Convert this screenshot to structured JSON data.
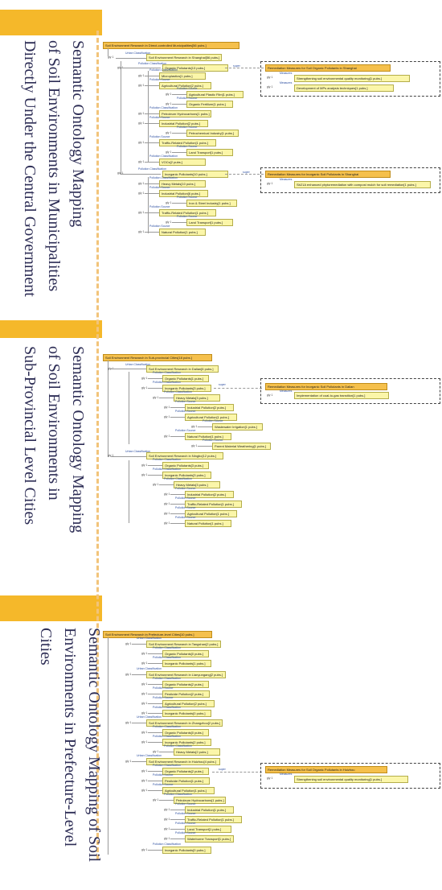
{
  "section1": {
    "title_lines": [
      "Semantic Ontology Mapping",
      "of Soil Environments in Municipalities",
      "Directly Under the Central Government"
    ],
    "root": "Soil Environment Research in Direct-controlled Municipalities[56 pubs.]",
    "urban_rel": "Urban Classification",
    "gly": "gly 1",
    "city": "Soil Environment Research in Shanghai[56 pubs.]",
    "poll_rel": "Pollution Classification",
    "source_rel": "Pollution Source",
    "super": "super",
    "organic": "Organic Pollutants[13 pubs.]",
    "org_sources": [
      "Microplastics[1 pubs.]",
      "Agricultural Pollution[2 pubs.]",
      "Agricultural Plastic Film[1 pubs.]",
      "Organic Fertilizer[1 pubs.]",
      "Petroleum Hydrocarbons[1 pubs.]",
      "Industrial Pollution[2 pubs.]",
      "Petrochemical Industry[1 pubs.]",
      "Traffic-Related Pollution[1 pubs.]",
      "Land Transport[1 pubs.]",
      "VOCs[2 pubs.]"
    ],
    "inorganic": "Inorganic Pollutants[10 pubs.]",
    "inorg_sources": [
      "Heavy Metals[10 pubs.]",
      "Industrial Pollution[6 pubs.]",
      "Iron & Steel Industry[1 pubs.]",
      "Traffic-Related Pollution[1 pubs.]",
      "Land Transport[1 pubs.]",
      "Natural Pollution[1 pubs.]"
    ],
    "rem1_head": "Remediation Measures for Soil Organic Pollutants in Shanghai",
    "rem1_rel": "Measures",
    "rem1_items": [
      "Strengthening soil environmental quality monitoring[1 pubs.]",
      "Development of MPs analysis techniques[1 pubs.]"
    ],
    "rem2_head": "Remediation Measures for Inorganic Soil Pollutants in Shanghai",
    "rem2_items": [
      "Sb21A enhanced phytoremediation with compost mulch for soil remediation[1 pubs.]"
    ]
  },
  "section2": {
    "title_lines": [
      "Semantic Ontology Mapping",
      "of Soil Environments in",
      "Sub-Provincial Level Cities"
    ],
    "root": "Soil Environment Research in Sub-provincial Cities[18 pubs.]",
    "city1": "Soil Environment Research in Dalian[6 pubs.]",
    "city1_items": [
      "Organic Pollutants[1 pubs.]",
      "Inorganic Pollutants[3 pubs.]",
      "Heavy Metals[3 pubs.]",
      "Industrial Pollution[2 pubs.]",
      "Agricultural Pollution[1 pubs.]",
      "Wastewater Irrigation[1 pubs.]",
      "Natural Pollution[1 pubs.]",
      "Parent Material Weathering[1 pubs.]"
    ],
    "city2": "Soil Environment Research in Ningbo[12 pubs.]",
    "city2_items": [
      "Organic Pollutants[3 pubs.]",
      "Inorganic Pollutants[3 pubs.]",
      "Heavy Metals[3 pubs.]",
      "Industrial Pollution[2 pubs.]",
      "Traffic-Related Pollution[1 pubs.]",
      "Agricultural Pollution[1 pubs.]",
      "Natural Pollution[1 pubs.]"
    ],
    "rem_head": "Remediation Measures for Inorganic Soil Pollutants in Dalian",
    "rem_items": [
      "Implementation of coal-to-gas transition[1 pubs.]"
    ]
  },
  "section3": {
    "title_lines": [
      "Semantic Ontology Mapping of Soil",
      "Environments in Prefecture-Level Cities"
    ],
    "root": "Soil Environment Research in Prefecture-level Cities[10 pubs.]",
    "city1": "Soil Environment Research in Tangshan[2 pubs.]",
    "city1_items": [
      "Organic Pollutants[0 pubs.]",
      "Inorganic Pollutants[1 pubs.]"
    ],
    "city2": "Soil Environment Research in Lianyungang[2 pubs.]",
    "city2_items": [
      "Organic Pollutants[2 pubs.]",
      "Pesticide Pollution[2 pubs.]",
      "Agricultural Pollution[2 pubs.]",
      "Inorganic Pollutants[0 pubs.]"
    ],
    "city3": "Soil Environment Research in Zhangzhou[2 pubs.]",
    "city3_items": [
      "Organic Pollutants[0 pubs.]",
      "Inorganic Pollutants[2 pubs.]",
      "Heavy Metals[2 pubs.]"
    ],
    "city4": "Soil Environment Research in Huizhou[4 pubs.]",
    "city4_items": [
      "Organic Pollutants[2 pubs.]",
      "Pesticide Pollution[1 pubs.]",
      "Agricultural Pollution[1 pubs.]",
      "Petroleum Hydrocarbons[1 pubs.]",
      "Industrial Pollution[1 pubs.]",
      "Traffic-Related Pollution[1 pubs.]",
      "Land Transport[1 pubs.]",
      "Waterborne Transport[1 pubs.]",
      "Inorganic Pollutants[0 pubs.]"
    ],
    "rem_head": "Remediation Measures for Soil Organic Pollutants in Huizhou",
    "rem_items": [
      "Strengthening soil environmental quality monitoring[1 pubs.]"
    ]
  }
}
